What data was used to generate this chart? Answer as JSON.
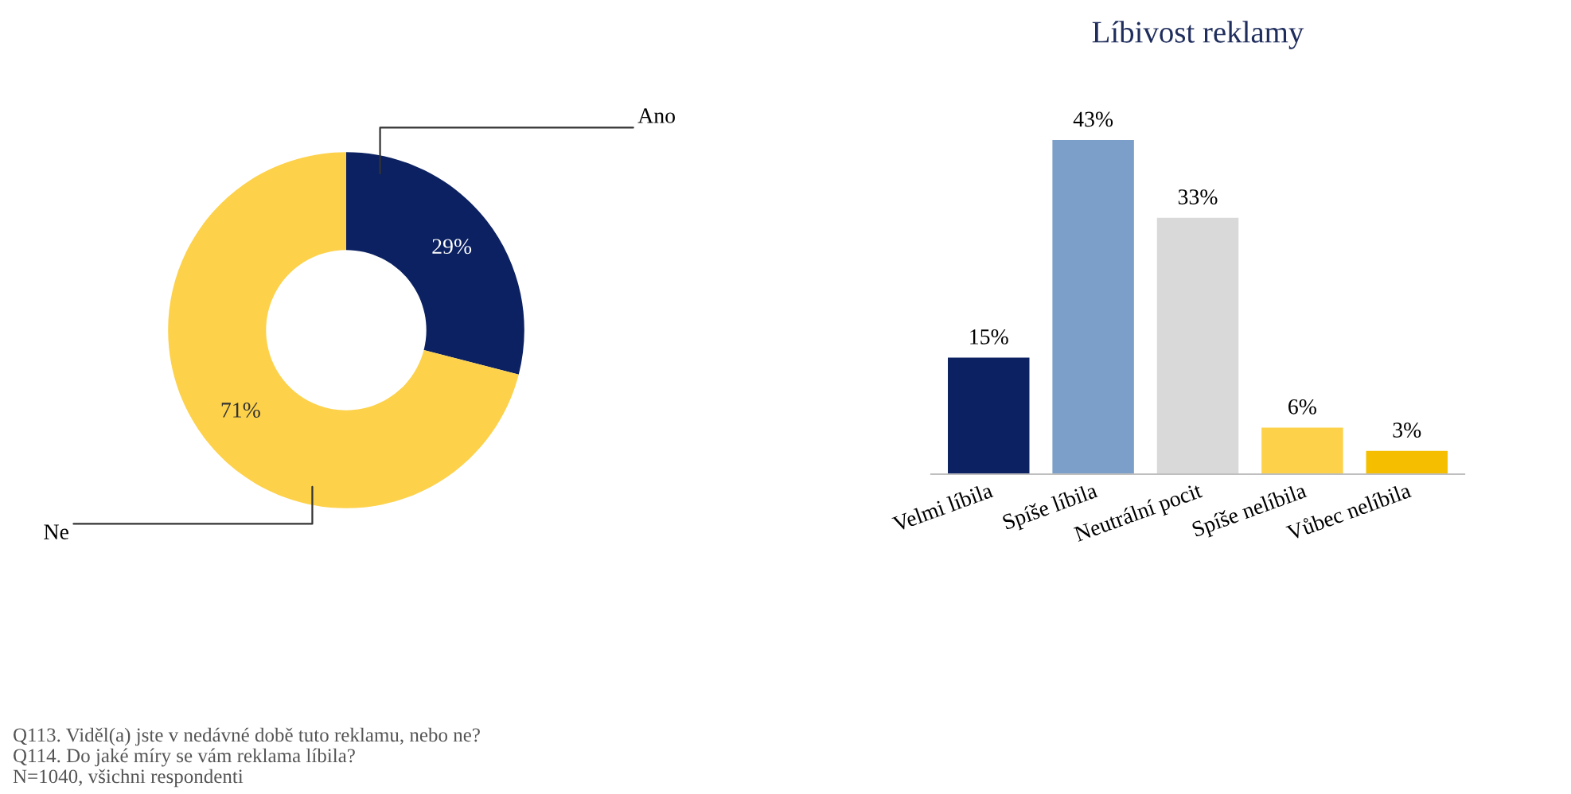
{
  "chart_data": [
    {
      "type": "donut",
      "categories": [
        "Ano",
        "Ne"
      ],
      "values": [
        29,
        71
      ],
      "colors": [
        "#0b2161",
        "#fdd14a"
      ],
      "value_labels": [
        "29%",
        "71%"
      ],
      "annotations": [
        "Q113. Viděl(a) jste v nedávné době tuto reklamu, nebo ne?",
        "Q114. Do jaké míry se vám reklama líbila?",
        "N=1040, všichni respondenti"
      ]
    },
    {
      "type": "bar",
      "title": "Líbivost reklamy",
      "data_labels": true,
      "tick_labels": "x",
      "categories": [
        "Velmi líbila",
        "Spíše líbila",
        "Neutrální pocit",
        "Spíše nelíbila",
        "Vůbec nelíbila"
      ],
      "values": [
        15,
        43,
        33,
        6,
        3
      ],
      "value_labels": [
        "15%",
        "43%",
        "33%",
        "6%",
        "3%"
      ],
      "colors": [
        "#0b2161",
        "#7b9fc8",
        "#d9d9d9",
        "#fdd14a",
        "#f5bf00"
      ]
    }
  ]
}
